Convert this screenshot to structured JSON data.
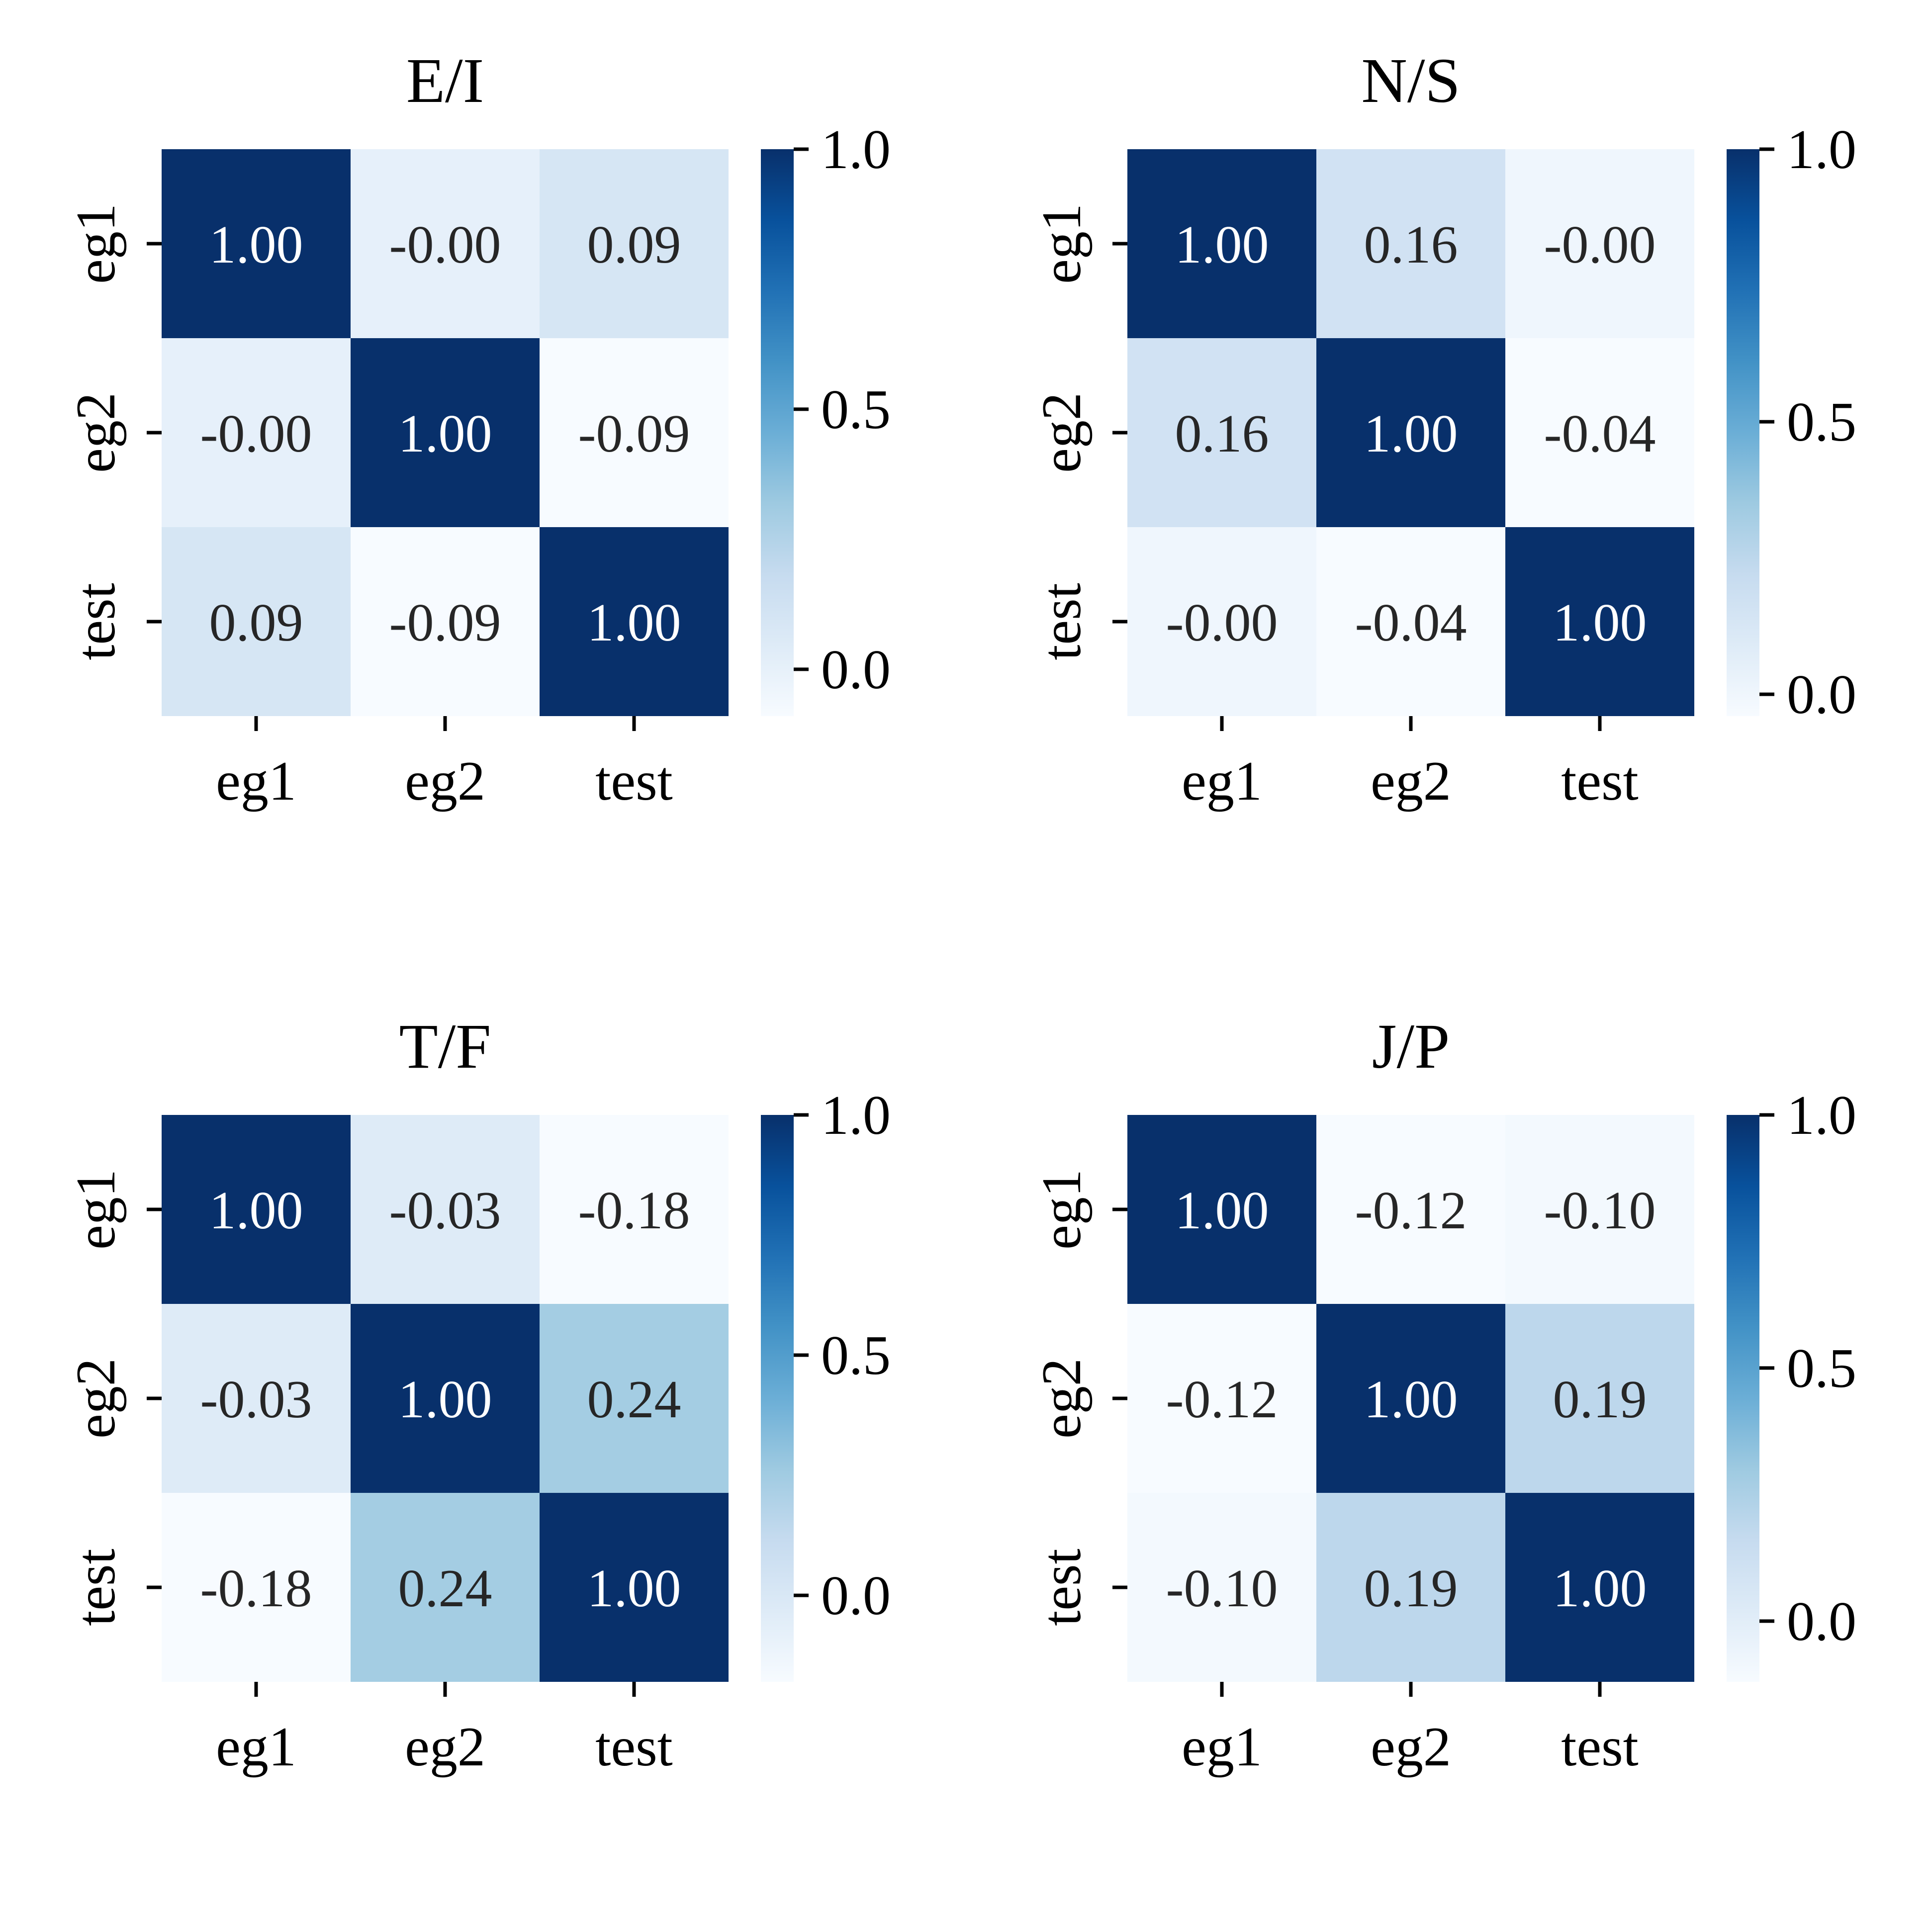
{
  "chart_data": [
    {
      "type": "heatmap",
      "title": "E/I",
      "x_categories": [
        "eg1",
        "eg2",
        "test"
      ],
      "y_categories": [
        "eg1",
        "eg2",
        "test"
      ],
      "values": [
        [
          1.0,
          -0.0,
          0.09
        ],
        [
          -0.0,
          1.0,
          -0.09
        ],
        [
          0.09,
          -0.09,
          1.0
        ]
      ],
      "labels": [
        [
          "1.00",
          "-0.00",
          "0.09"
        ],
        [
          "-0.00",
          "1.00",
          "-0.09"
        ],
        [
          "0.09",
          "-0.09",
          "1.00"
        ]
      ],
      "colorbar": {
        "vmin": -0.09,
        "vmax": 1.0,
        "ticks": [
          0.0,
          0.5,
          1.0
        ],
        "tick_labels": [
          "0.0",
          "0.5",
          "1.0"
        ]
      }
    },
    {
      "type": "heatmap",
      "title": "N/S",
      "x_categories": [
        "eg1",
        "eg2",
        "test"
      ],
      "y_categories": [
        "eg1",
        "eg2",
        "test"
      ],
      "values": [
        [
          1.0,
          0.16,
          -0.0
        ],
        [
          0.16,
          1.0,
          -0.04
        ],
        [
          -0.0,
          -0.04,
          1.0
        ]
      ],
      "labels": [
        [
          "1.00",
          "0.16",
          "-0.00"
        ],
        [
          "0.16",
          "1.00",
          "-0.04"
        ],
        [
          "-0.00",
          "-0.04",
          "1.00"
        ]
      ],
      "colorbar": {
        "vmin": -0.04,
        "vmax": 1.0,
        "ticks": [
          0.0,
          0.5,
          1.0
        ],
        "tick_labels": [
          "0.0",
          "0.5",
          "1.0"
        ]
      }
    },
    {
      "type": "heatmap",
      "title": "T/F",
      "x_categories": [
        "eg1",
        "eg2",
        "test"
      ],
      "y_categories": [
        "eg1",
        "eg2",
        "test"
      ],
      "values": [
        [
          1.0,
          -0.03,
          -0.18
        ],
        [
          -0.03,
          1.0,
          0.24
        ],
        [
          -0.18,
          0.24,
          1.0
        ]
      ],
      "labels": [
        [
          "1.00",
          "-0.03",
          "-0.18"
        ],
        [
          "-0.03",
          "1.00",
          "0.24"
        ],
        [
          "-0.18",
          "0.24",
          "1.00"
        ]
      ],
      "colorbar": {
        "vmin": -0.18,
        "vmax": 1.0,
        "ticks": [
          0.0,
          0.5,
          1.0
        ],
        "tick_labels": [
          "0.0",
          "0.5",
          "1.0"
        ]
      }
    },
    {
      "type": "heatmap",
      "title": "J/P",
      "x_categories": [
        "eg1",
        "eg2",
        "test"
      ],
      "y_categories": [
        "eg1",
        "eg2",
        "test"
      ],
      "values": [
        [
          1.0,
          -0.12,
          -0.1
        ],
        [
          -0.12,
          1.0,
          0.19
        ],
        [
          -0.1,
          0.19,
          1.0
        ]
      ],
      "labels": [
        [
          "1.00",
          "-0.12",
          "-0.10"
        ],
        [
          "-0.12",
          "1.00",
          "0.19"
        ],
        [
          "-0.10",
          "0.19",
          "1.00"
        ]
      ],
      "colorbar": {
        "vmin": -0.12,
        "vmax": 1.0,
        "ticks": [
          0.0,
          0.5,
          1.0
        ],
        "tick_labels": [
          "0.0",
          "0.5",
          "1.0"
        ]
      }
    }
  ],
  "colormap": "Blues"
}
